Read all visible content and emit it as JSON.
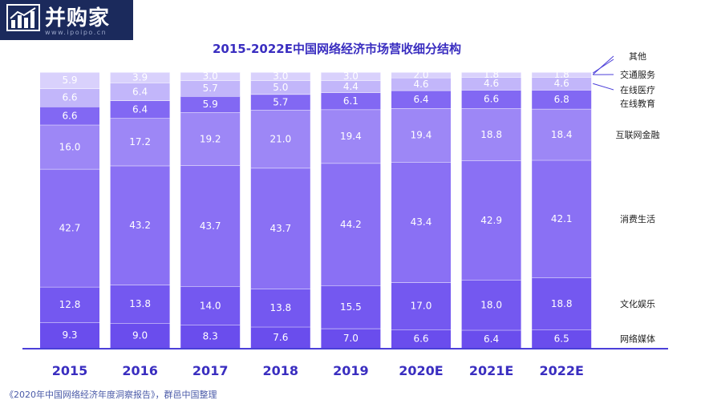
{
  "logo": {
    "name": "群邑中国",
    "text": "并购家",
    "url": "www.ipoipo.cn"
  },
  "chart_data": {
    "type": "bar",
    "stacked": true,
    "title": "2015-2022E中国网络经济市场营收细分结构",
    "categories": [
      "2015",
      "2016",
      "2017",
      "2018",
      "2019",
      "2020E",
      "2021E",
      "2022E"
    ],
    "series": [
      {
        "name": "网络媒体",
        "values": [
          9.3,
          9.0,
          8.3,
          7.6,
          7.0,
          6.6,
          6.4,
          6.5
        ],
        "color": "#6a4ded"
      },
      {
        "name": "文化娱乐",
        "values": [
          12.8,
          13.8,
          14.0,
          13.8,
          15.5,
          17.0,
          18.0,
          18.8
        ],
        "color": "#7458f0"
      },
      {
        "name": "消费生活",
        "values": [
          42.7,
          43.2,
          43.7,
          43.7,
          44.2,
          43.4,
          42.9,
          42.1
        ],
        "color": "#8a70f4"
      },
      {
        "name": "互联网金融",
        "values": [
          16.0,
          17.2,
          19.2,
          21.0,
          19.4,
          19.4,
          18.8,
          18.4
        ],
        "color": "#9d87f6"
      },
      {
        "name": "在线教育",
        "values": [
          6.6,
          6.4,
          5.9,
          5.7,
          6.1,
          6.4,
          6.6,
          6.8
        ],
        "color": "#8268f3"
      },
      {
        "name": "在线医疗",
        "values": [
          6.6,
          6.4,
          5.7,
          5.0,
          4.4,
          4.6,
          4.6,
          4.6
        ],
        "color": "#c2b6fa"
      },
      {
        "name": "交通服务",
        "values": [
          null,
          null,
          null,
          null,
          null,
          2.0,
          1.8,
          1.8
        ],
        "color": "#d9d1fc"
      },
      {
        "name": "其他",
        "values": [
          5.9,
          3.9,
          3.0,
          3.0,
          3.0,
          null,
          null,
          null
        ],
        "color": "#d9d1fc"
      }
    ],
    "value_labels": [
      [
        "9.3",
        "12.8",
        "42.7",
        "16.0",
        "6.6",
        "6.6",
        "",
        "5.9"
      ],
      [
        "9.0",
        "13.8",
        "43.2",
        "17.2",
        "6.4",
        "6.4",
        "",
        "3.9"
      ],
      [
        "8.3",
        "14.0",
        "43.7",
        "19.2",
        "5.9",
        "5.7",
        "",
        "3.0"
      ],
      [
        "7.6",
        "13.8",
        "43.7",
        "21.0",
        "5.7",
        "5.0",
        "",
        "3.0"
      ],
      [
        "7.0",
        "15.5",
        "44.2",
        "19.4",
        "6.1",
        "4.4",
        "",
        "3.0"
      ],
      [
        "6.6",
        "17.0",
        "43.4",
        "19.4",
        "6.4",
        "4.6",
        "2.0",
        ""
      ],
      [
        "6.4",
        "18.0",
        "42.9",
        "18.8",
        "6.6",
        "4.6",
        "1.8",
        ""
      ],
      [
        "6.5",
        "18.8",
        "42.1",
        "18.4",
        "6.8",
        "4.6",
        "1.8",
        ""
      ]
    ],
    "ylim": [
      0,
      100
    ],
    "legend_position": "right",
    "grid": false,
    "xlabel": "",
    "ylabel": ""
  },
  "source": "《2020年中国网络经济年度洞察报告》，群邑中国整理"
}
